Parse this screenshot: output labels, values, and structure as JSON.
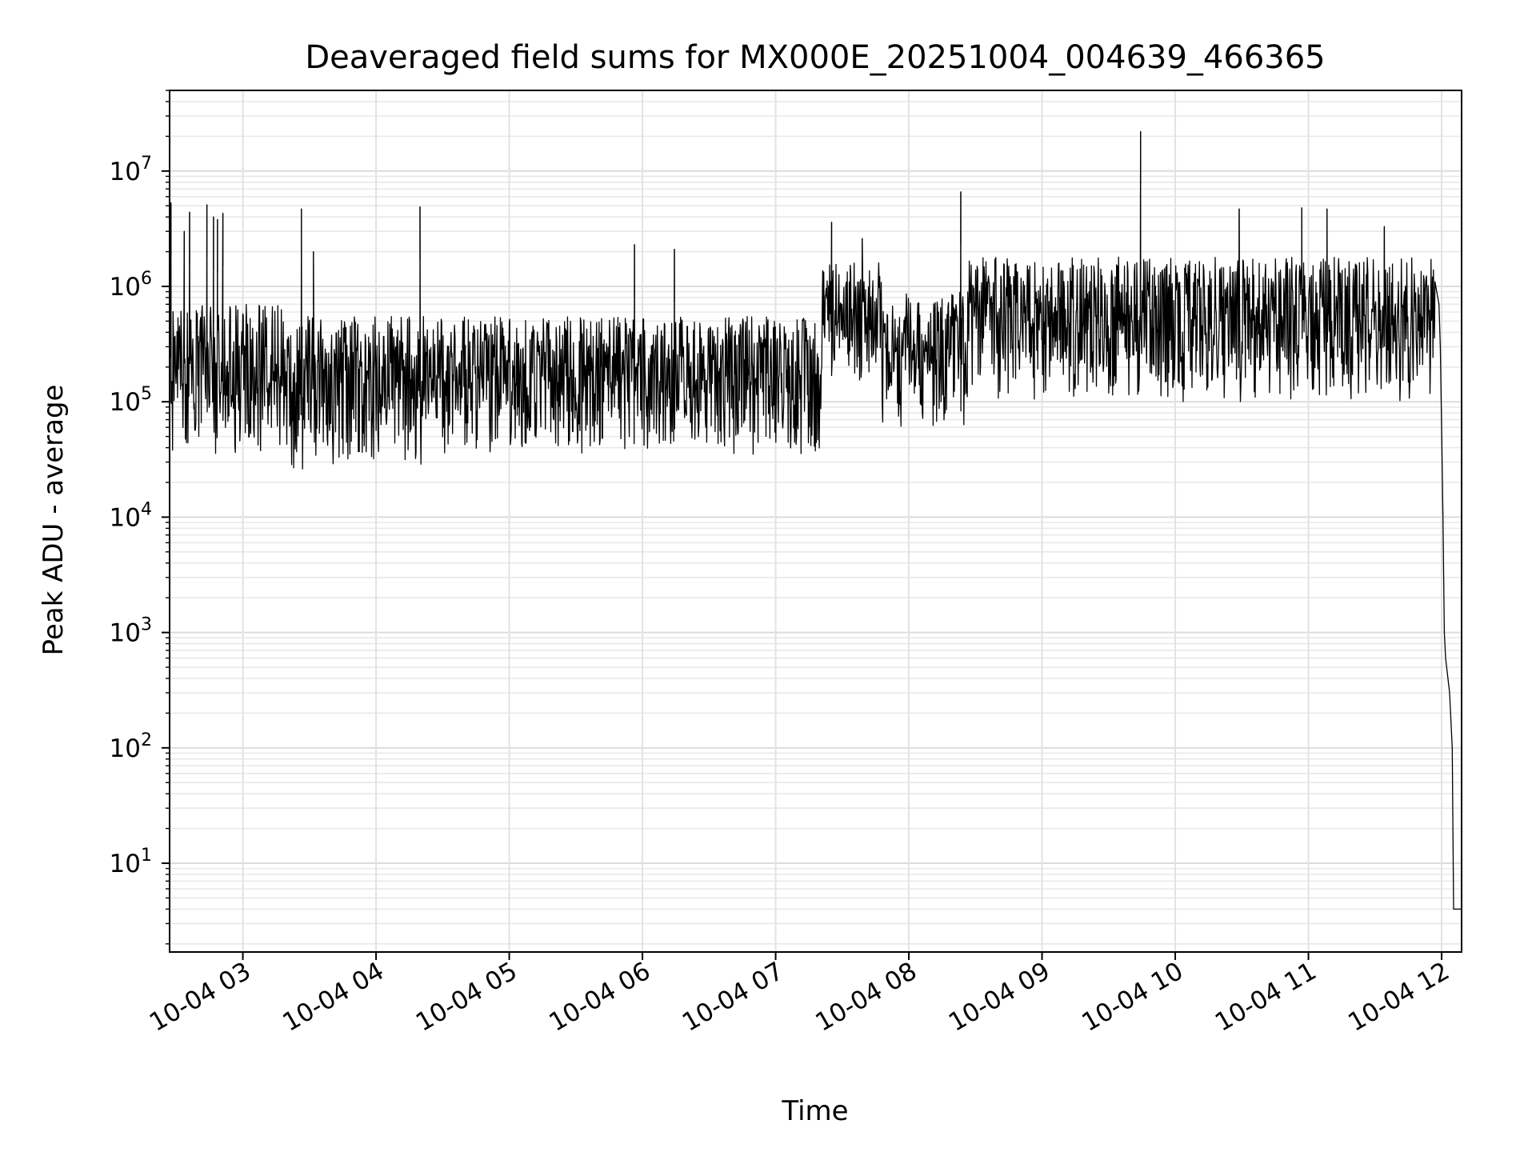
{
  "chart_data": {
    "type": "line",
    "title": "Deaveraged field sums for MX000E_20251004_004639_466365",
    "xlabel": "Time",
    "ylabel": "Peak ADU - average",
    "yscale": "log",
    "ylim": [
      1.7,
      50000000
    ],
    "xlim_hours": [
      2.45,
      12.15
    ],
    "grid": true,
    "x_ticks": [
      {
        "label": "10-04 03",
        "hour": 3
      },
      {
        "label": "10-04 04",
        "hour": 4
      },
      {
        "label": "10-04 05",
        "hour": 5
      },
      {
        "label": "10-04 06",
        "hour": 6
      },
      {
        "label": "10-04 07",
        "hour": 7
      },
      {
        "label": "10-04 08",
        "hour": 8
      },
      {
        "label": "10-04 09",
        "hour": 9
      },
      {
        "label": "10-04 10",
        "hour": 10
      },
      {
        "label": "10-04 11",
        "hour": 11
      },
      {
        "label": "10-04 12",
        "hour": 12
      }
    ],
    "y_ticks": [
      {
        "base": "10",
        "exp": "1",
        "value": 10
      },
      {
        "base": "10",
        "exp": "2",
        "value": 100
      },
      {
        "base": "10",
        "exp": "3",
        "value": 1000
      },
      {
        "base": "10",
        "exp": "4",
        "value": 10000
      },
      {
        "base": "10",
        "exp": "5",
        "value": 100000
      },
      {
        "base": "10",
        "exp": "6",
        "value": 1000000
      },
      {
        "base": "10",
        "exp": "7",
        "value": 10000000
      }
    ],
    "series": [
      {
        "name": "field sums",
        "color": "#000000",
        "segments": [
          {
            "start_hour": 2.45,
            "end_hour": 3.3,
            "low": 35000,
            "high": 700000
          },
          {
            "start_hour": 3.3,
            "end_hour": 4.4,
            "low": 25000,
            "high": 550000
          },
          {
            "start_hour": 4.4,
            "end_hour": 7.35,
            "low": 35000,
            "high": 550000
          },
          {
            "start_hour": 7.35,
            "end_hour": 7.8,
            "low": 150000,
            "high": 1600000
          },
          {
            "start_hour": 7.8,
            "end_hour": 8.45,
            "low": 60000,
            "high": 900000
          },
          {
            "start_hour": 8.45,
            "end_hour": 9.9,
            "low": 100000,
            "high": 1800000
          },
          {
            "start_hour": 9.9,
            "end_hour": 11.95,
            "low": 100000,
            "high": 1800000
          }
        ],
        "spikes": [
          {
            "hour": 2.46,
            "value": 5300000
          },
          {
            "hour": 2.56,
            "value": 3000000
          },
          {
            "hour": 2.6,
            "value": 4400000
          },
          {
            "hour": 2.73,
            "value": 5100000
          },
          {
            "hour": 2.78,
            "value": 4000000
          },
          {
            "hour": 2.81,
            "value": 3800000
          },
          {
            "hour": 2.85,
            "value": 4300000
          },
          {
            "hour": 3.44,
            "value": 4700000
          },
          {
            "hour": 3.53,
            "value": 2000000
          },
          {
            "hour": 4.33,
            "value": 4900000
          },
          {
            "hour": 5.94,
            "value": 2300000
          },
          {
            "hour": 6.24,
            "value": 2100000
          },
          {
            "hour": 7.42,
            "value": 3600000
          },
          {
            "hour": 7.65,
            "value": 2600000
          },
          {
            "hour": 8.39,
            "value": 6600000
          },
          {
            "hour": 9.74,
            "value": 22000000
          },
          {
            "hour": 10.48,
            "value": 4700000
          },
          {
            "hour": 10.95,
            "value": 4800000
          },
          {
            "hour": 11.14,
            "value": 4700000
          },
          {
            "hour": 11.57,
            "value": 3300000
          }
        ],
        "tail": [
          {
            "hour": 11.95,
            "value": 1100000
          },
          {
            "hour": 11.98,
            "value": 700000
          },
          {
            "hour": 11.99,
            "value": 300000
          },
          {
            "hour": 12.0,
            "value": 60000
          },
          {
            "hour": 12.01,
            "value": 10000
          },
          {
            "hour": 12.02,
            "value": 1000
          },
          {
            "hour": 12.03,
            "value": 600
          },
          {
            "hour": 12.06,
            "value": 300
          },
          {
            "hour": 12.08,
            "value": 100
          },
          {
            "hour": 12.09,
            "value": 4
          },
          {
            "hour": 12.12,
            "value": 4
          },
          {
            "hour": 12.15,
            "value": 4
          }
        ]
      }
    ]
  }
}
